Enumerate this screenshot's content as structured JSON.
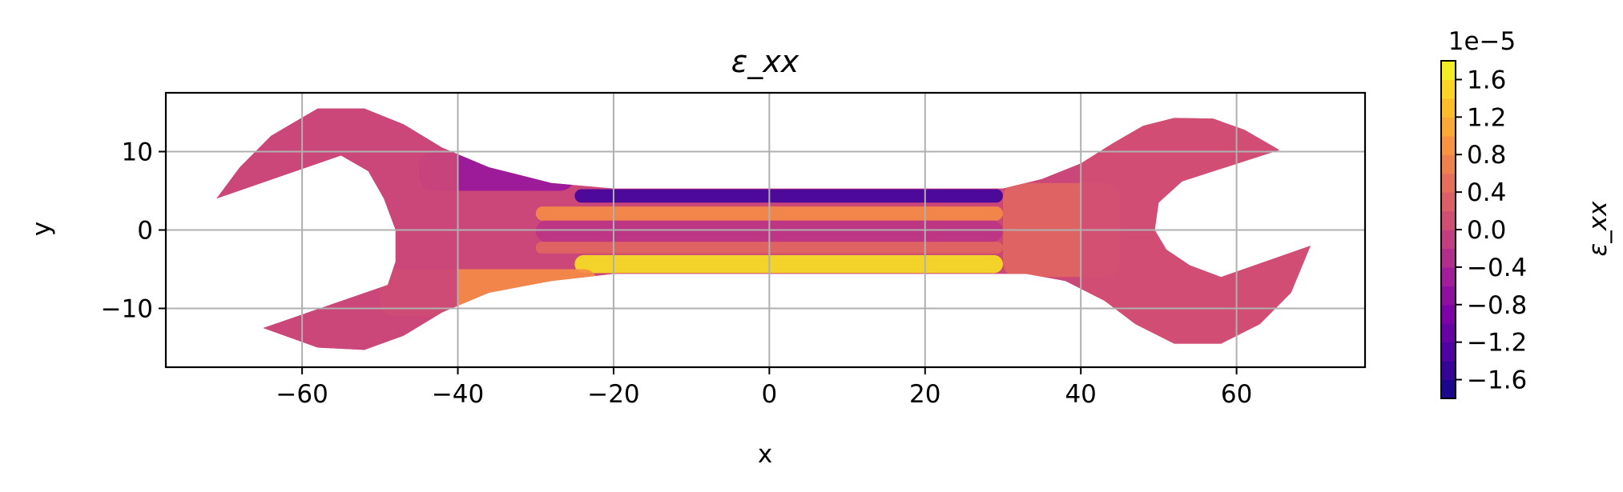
{
  "chart_data": {
    "type": "heatmap",
    "title": "ε_xx",
    "xlabel": "x",
    "ylabel": "y",
    "xlim": [
      -77.5,
      76.5
    ],
    "ylim": [
      -17.5,
      17.5
    ],
    "x_ticks": [
      -60,
      -40,
      -20,
      0,
      20,
      40,
      60
    ],
    "x_tick_labels": [
      "−60",
      "−40",
      "−20",
      "0",
      "20",
      "40",
      "60"
    ],
    "y_ticks": [
      -10,
      0,
      10
    ],
    "y_tick_labels": [
      "−10",
      "0",
      "10"
    ],
    "grid": true,
    "colormap": "plasma",
    "colorbar": {
      "label": "ε_xx",
      "offset_text": "1e−5",
      "range": [
        -1.8,
        1.8
      ],
      "ticks": [
        -1.6,
        -1.2,
        -0.8,
        -0.4,
        0.0,
        0.4,
        0.8,
        1.2,
        1.6
      ],
      "tick_labels": [
        "−1.6",
        "−1.2",
        "−0.8",
        "−0.4",
        "0.0",
        "0.4",
        "0.8",
        "1.2",
        "1.6"
      ],
      "levels": 18
    },
    "regions": [
      {
        "name": "shaft top edge",
        "x": [
          -25,
          30
        ],
        "y": [
          3.5,
          5.2
        ],
        "value": -1.4
      },
      {
        "name": "shaft upper core",
        "x": [
          -30,
          30
        ],
        "y": [
          1.2,
          3.0
        ],
        "value": 0.8
      },
      {
        "name": "shaft mid band",
        "x": [
          -30,
          30
        ],
        "y": [
          -1.5,
          1.2
        ],
        "value": -0.2
      },
      {
        "name": "shaft lower core",
        "x": [
          -30,
          30
        ],
        "y": [
          -3.0,
          -1.5
        ],
        "value": 0.4
      },
      {
        "name": "shaft bottom edge",
        "x": [
          -25,
          30
        ],
        "y": [
          -5.5,
          -3.2
        ],
        "value": 1.6
      },
      {
        "name": "left neck top",
        "x": [
          -45,
          -25
        ],
        "y": [
          5,
          10
        ],
        "value": -0.6
      },
      {
        "name": "left neck bottom",
        "x": [
          -50,
          -22
        ],
        "y": [
          -11,
          -5
        ],
        "value": 0.8
      },
      {
        "name": "left jaw",
        "x": [
          -71,
          -40
        ],
        "y": [
          -16,
          16
        ],
        "value": 0.0
      },
      {
        "name": "right neck",
        "x": [
          30,
          45
        ],
        "y": [
          -6,
          6
        ],
        "value": 0.4
      },
      {
        "name": "right head",
        "x": [
          40,
          70
        ],
        "y": [
          -15,
          15
        ],
        "value": 0.1
      }
    ]
  }
}
